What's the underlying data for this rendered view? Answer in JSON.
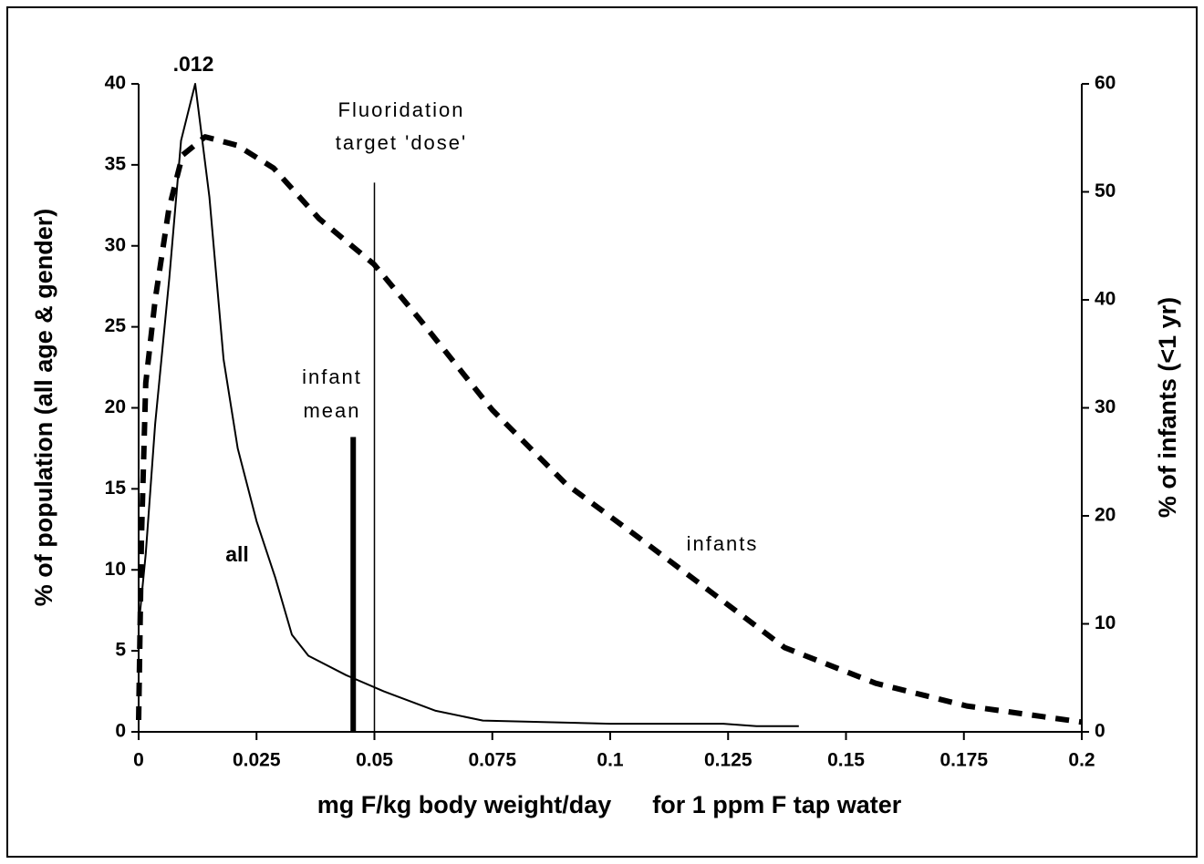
{
  "chart_data": {
    "type": "line",
    "x_label": "mg F/kg body weight/day      for 1 ppm F tap water",
    "y_label": "% of population (all age & gender)",
    "y2_label": "% of infants (<1 yr)",
    "xlim": [
      0,
      0.2
    ],
    "xticks": [
      0,
      0.025,
      0.05,
      0.075,
      0.1,
      0.125,
      0.15,
      0.175,
      0.2
    ],
    "ylim": [
      0,
      40
    ],
    "yticks": [
      0,
      5,
      10,
      15,
      20,
      25,
      30,
      35,
      40
    ],
    "y2lim": [
      0,
      60
    ],
    "y2ticks": [
      0,
      10,
      20,
      30,
      40,
      50,
      60
    ],
    "series": [
      {
        "name": "all",
        "color": "#000000",
        "dashed": false,
        "x": [
          0,
          0.0015,
          0.0035,
          0.0065,
          0.009,
          0.012,
          0.015,
          0.018,
          0.021,
          0.025,
          0.029,
          0.0325,
          0.036,
          0.044,
          0.052,
          0.063,
          0.073,
          0.1,
          0.124,
          0.131,
          0.14
        ],
        "values": [
          6.5,
          11,
          19,
          28,
          36.5,
          40,
          33,
          23,
          17.5,
          13,
          9.5,
          6,
          4.7,
          3.5,
          2.5,
          1.3,
          0.7,
          0.5,
          0.5,
          0.35,
          0.35
        ]
      },
      {
        "name": "infants",
        "color": "#000000",
        "dashed": true,
        "axis": "y2",
        "x": [
          0,
          0.0006,
          0.0015,
          0.0035,
          0.0064,
          0.0093,
          0.0141,
          0.0209,
          0.0286,
          0.0383,
          0.0499,
          0.0596,
          0.075,
          0.0905,
          0.106,
          0.1215,
          0.137,
          0.1563,
          0.1756,
          0.2
        ],
        "values": [
          1.1,
          18,
          32.3,
          40,
          48.4,
          53.4,
          55.1,
          54.3,
          52.2,
          47.5,
          43.3,
          38.2,
          29.8,
          23,
          18,
          12.9,
          7.8,
          4.5,
          2.4,
          0.9
        ]
      }
    ],
    "markers": [
      {
        "label": [
          "infant",
          "mean"
        ],
        "x": 0.0455,
        "value": 18.2,
        "style": "bar"
      },
      {
        "label": [
          "Fluoridation",
          "target 'dose'"
        ],
        "x": 0.05,
        "value": 33.9,
        "style": "line"
      }
    ],
    "annotations": [
      ".012"
    ]
  }
}
